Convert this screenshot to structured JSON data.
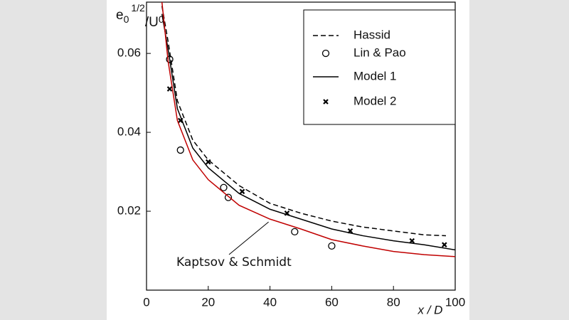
{
  "chart_data": {
    "type": "line",
    "y_label_parts": [
      "e",
      "0",
      "1/2",
      "/U",
      "0"
    ],
    "x_label": "x / D",
    "xlim": [
      0,
      100
    ],
    "xticks": [
      0,
      20,
      40,
      60,
      80,
      100
    ],
    "ylim": [
      0,
      0.073
    ],
    "yticks": [
      0.02,
      0.04,
      0.06
    ],
    "legend": "upper right",
    "series": [
      {
        "name": "Hassid",
        "color": "#000000",
        "style": "dashed",
        "x": [
          5,
          7,
          10,
          15,
          20,
          30,
          40,
          50,
          60,
          70,
          80,
          90,
          97
        ],
        "values": [
          0.072,
          0.063,
          0.048,
          0.038,
          0.033,
          0.0265,
          0.022,
          0.0195,
          0.0175,
          0.016,
          0.015,
          0.014,
          0.0138
        ]
      },
      {
        "name": "Lin & Pao",
        "color": "#000000",
        "style": "marker",
        "marker": "circle",
        "x": [
          7.5,
          11,
          25,
          26.5,
          48,
          60
        ],
        "values": [
          0.0585,
          0.0355,
          0.026,
          0.0235,
          0.0148,
          0.0112
        ]
      },
      {
        "name": "Model 1",
        "color": "#000000",
        "style": "solid",
        "x": [
          5,
          7,
          10,
          15,
          20,
          30,
          40,
          50,
          60,
          70,
          80,
          90,
          100
        ],
        "values": [
          0.07,
          0.061,
          0.046,
          0.036,
          0.031,
          0.0245,
          0.0205,
          0.018,
          0.0155,
          0.0138,
          0.0125,
          0.0115,
          0.0102
        ]
      },
      {
        "name": "Model 2",
        "color": "#000000",
        "style": "marker",
        "marker": "x",
        "x": [
          7.5,
          11,
          20,
          31,
          45.5,
          66,
          86,
          96.5
        ],
        "values": [
          0.051,
          0.043,
          0.0325,
          0.025,
          0.0195,
          0.015,
          0.0125,
          0.0115
        ]
      },
      {
        "color": "#c00000",
        "style": "solid",
        "x": [
          5,
          7,
          10,
          15,
          20,
          30,
          40,
          50,
          60,
          70,
          80,
          90,
          100
        ],
        "values": [
          0.073,
          0.058,
          0.043,
          0.033,
          0.028,
          0.0215,
          0.018,
          0.0155,
          0.0128,
          0.0112,
          0.0098,
          0.009,
          0.0085
        ]
      }
    ],
    "annotations": [
      {
        "text": "Kaptsov & Schmidt",
        "series": 4,
        "x": 34
      }
    ]
  }
}
